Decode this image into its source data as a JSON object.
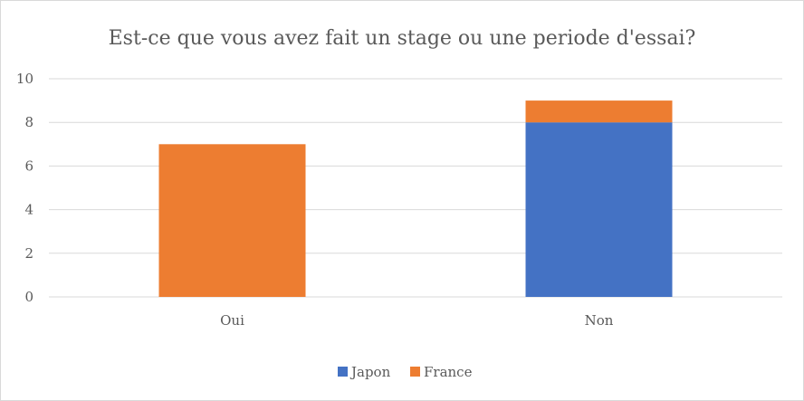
{
  "chart_data": {
    "type": "bar",
    "stacked": true,
    "title": "Est-ce que vous avez fait un stage ou une periode d'essai?",
    "xlabel": "",
    "ylabel": "",
    "categories": [
      "Oui",
      "Non"
    ],
    "series": [
      {
        "name": "Japon",
        "values": [
          0,
          8
        ],
        "color": "#4472c4"
      },
      {
        "name": "France",
        "values": [
          7,
          1
        ],
        "color": "#ed7d31"
      }
    ],
    "ylim": [
      0,
      10
    ],
    "yticks": [
      0,
      2,
      4,
      6,
      8,
      10
    ],
    "grid": true,
    "legend_position": "bottom"
  }
}
